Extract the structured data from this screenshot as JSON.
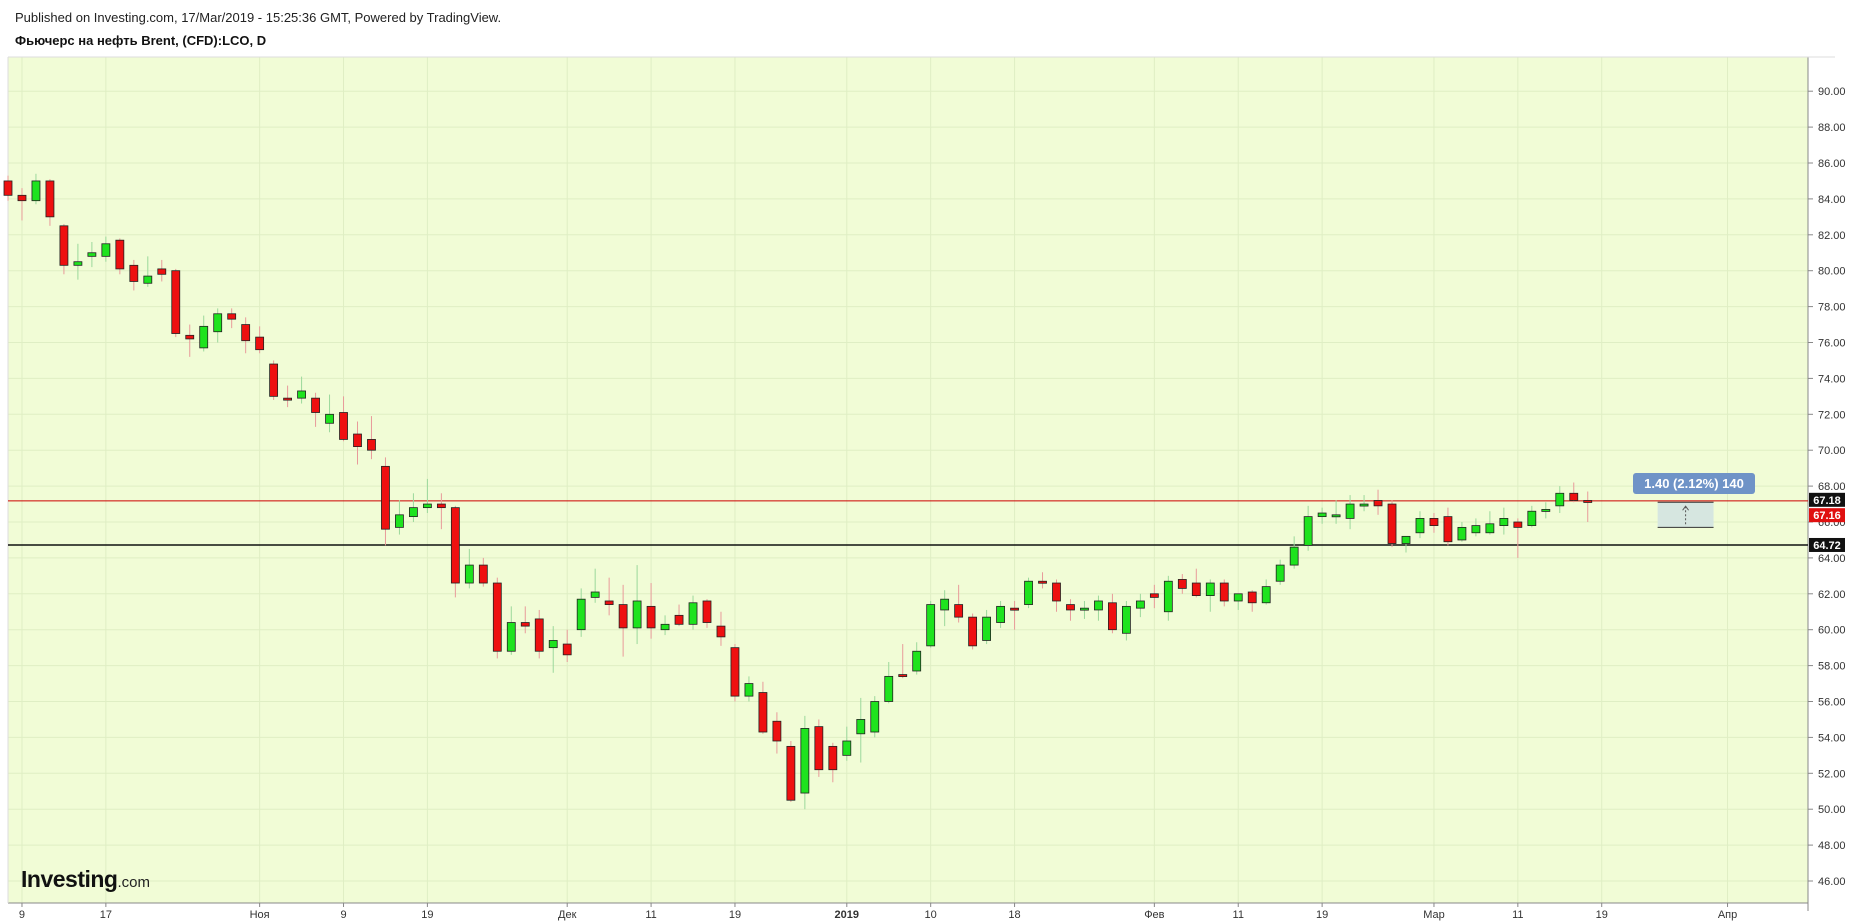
{
  "header": {
    "published": "Published on Investing.com, 17/Mar/2019 - 15:25:36 GMT, Powered by TradingView.",
    "instrument": "Фьючерс на нефть Brent, (CFD):LCO, D"
  },
  "logo": {
    "bold": "Investing",
    "suffix": ".com"
  },
  "measure_tool": {
    "label": "1.40 (2.12%) 140"
  },
  "colors": {
    "background": "#f1fcd6",
    "up": "#1ee31e",
    "down": "#ee1010",
    "red_line": "#cc0000",
    "black_line": "#111111",
    "grid": "#dfeec4"
  },
  "chart_data": {
    "type": "candlestick",
    "ylim": [
      45,
      91
    ],
    "y_ticks": [
      "46.00",
      "48.00",
      "50.00",
      "52.00",
      "54.00",
      "56.00",
      "58.00",
      "60.00",
      "62.00",
      "64.00",
      "66.00",
      "68.00",
      "70.00",
      "72.00",
      "74.00",
      "76.00",
      "78.00",
      "80.00",
      "82.00",
      "84.00",
      "86.00",
      "88.00",
      "90.00"
    ],
    "x_ticks": [
      {
        "label": "9",
        "index": 1
      },
      {
        "label": "17",
        "index": 7
      },
      {
        "label": "Ноя",
        "index": 18
      },
      {
        "label": "9",
        "index": 24
      },
      {
        "label": "19",
        "index": 30
      },
      {
        "label": "Дек",
        "index": 40
      },
      {
        "label": "11",
        "index": 46
      },
      {
        "label": "19",
        "index": 52
      },
      {
        "label": "2019",
        "index": 60
      },
      {
        "label": "10",
        "index": 66
      },
      {
        "label": "18",
        "index": 72
      },
      {
        "label": "Фев",
        "index": 82
      },
      {
        "label": "11",
        "index": 88
      },
      {
        "label": "19",
        "index": 94
      },
      {
        "label": "Мар",
        "index": 102
      },
      {
        "label": "11",
        "index": 108
      },
      {
        "label": "19",
        "index": 114
      },
      {
        "label": "Апр",
        "index": 123
      }
    ],
    "price_labels": [
      {
        "value": "67.18",
        "style": "black"
      },
      {
        "value": "67.16",
        "style": "red"
      },
      {
        "value": "64.72",
        "style": "black"
      }
    ],
    "horizontal_lines": [
      {
        "value": 67.18,
        "color": "red"
      },
      {
        "value": 64.72,
        "color": "black"
      }
    ],
    "measure_range": {
      "from": 65.7,
      "to": 67.1,
      "start_index": 118,
      "end_index": 122
    },
    "candles": [
      {
        "o": 85.0,
        "h": 85.3,
        "l": 83.9,
        "c": 84.2
      },
      {
        "o": 84.2,
        "h": 84.6,
        "l": 82.8,
        "c": 83.9
      },
      {
        "o": 83.9,
        "h": 85.4,
        "l": 83.7,
        "c": 85.0
      },
      {
        "o": 85.0,
        "h": 85.1,
        "l": 82.5,
        "c": 83.0
      },
      {
        "o": 82.5,
        "h": 82.6,
        "l": 79.8,
        "c": 80.3
      },
      {
        "o": 80.3,
        "h": 81.5,
        "l": 79.5,
        "c": 80.5
      },
      {
        "o": 80.8,
        "h": 81.6,
        "l": 80.2,
        "c": 81.0
      },
      {
        "o": 80.8,
        "h": 81.9,
        "l": 80.5,
        "c": 81.5
      },
      {
        "o": 81.7,
        "h": 81.8,
        "l": 79.8,
        "c": 80.1
      },
      {
        "o": 80.3,
        "h": 80.6,
        "l": 78.9,
        "c": 79.4
      },
      {
        "o": 79.3,
        "h": 80.8,
        "l": 79.1,
        "c": 79.7
      },
      {
        "o": 80.1,
        "h": 80.6,
        "l": 79.4,
        "c": 79.8
      },
      {
        "o": 80.0,
        "h": 80.1,
        "l": 76.3,
        "c": 76.5
      },
      {
        "o": 76.4,
        "h": 77.0,
        "l": 75.2,
        "c": 76.2
      },
      {
        "o": 75.7,
        "h": 77.5,
        "l": 75.5,
        "c": 76.9
      },
      {
        "o": 76.6,
        "h": 77.9,
        "l": 76.0,
        "c": 77.6
      },
      {
        "o": 77.6,
        "h": 77.9,
        "l": 76.8,
        "c": 77.3
      },
      {
        "o": 77.0,
        "h": 77.4,
        "l": 75.4,
        "c": 76.1
      },
      {
        "o": 76.3,
        "h": 76.9,
        "l": 75.4,
        "c": 75.6
      },
      {
        "o": 74.8,
        "h": 75.0,
        "l": 72.8,
        "c": 73.0
      },
      {
        "o": 72.9,
        "h": 73.6,
        "l": 72.4,
        "c": 72.8
      },
      {
        "o": 72.9,
        "h": 74.1,
        "l": 72.6,
        "c": 73.3
      },
      {
        "o": 72.9,
        "h": 73.2,
        "l": 71.3,
        "c": 72.1
      },
      {
        "o": 71.5,
        "h": 73.1,
        "l": 71.0,
        "c": 72.0
      },
      {
        "o": 72.1,
        "h": 73.0,
        "l": 70.5,
        "c": 70.6
      },
      {
        "o": 70.9,
        "h": 71.6,
        "l": 69.2,
        "c": 70.2
      },
      {
        "o": 70.6,
        "h": 71.9,
        "l": 69.5,
        "c": 70.0
      },
      {
        "o": 69.1,
        "h": 69.6,
        "l": 64.7,
        "c": 65.6
      },
      {
        "o": 65.7,
        "h": 67.2,
        "l": 65.3,
        "c": 66.4
      },
      {
        "o": 66.3,
        "h": 67.6,
        "l": 66.0,
        "c": 66.8
      },
      {
        "o": 66.8,
        "h": 68.4,
        "l": 66.5,
        "c": 67.0
      },
      {
        "o": 67.0,
        "h": 67.6,
        "l": 65.6,
        "c": 66.8
      },
      {
        "o": 66.8,
        "h": 66.9,
        "l": 61.8,
        "c": 62.6
      },
      {
        "o": 62.6,
        "h": 64.5,
        "l": 62.3,
        "c": 63.6
      },
      {
        "o": 63.6,
        "h": 64.0,
        "l": 62.4,
        "c": 62.6
      },
      {
        "o": 62.6,
        "h": 62.9,
        "l": 58.4,
        "c": 58.8
      },
      {
        "o": 58.8,
        "h": 61.3,
        "l": 58.6,
        "c": 60.4
      },
      {
        "o": 60.4,
        "h": 61.3,
        "l": 59.8,
        "c": 60.2
      },
      {
        "o": 60.6,
        "h": 61.1,
        "l": 58.4,
        "c": 58.8
      },
      {
        "o": 59.0,
        "h": 60.2,
        "l": 57.6,
        "c": 59.4
      },
      {
        "o": 59.2,
        "h": 60.0,
        "l": 58.2,
        "c": 58.6
      },
      {
        "o": 60.0,
        "h": 62.3,
        "l": 59.6,
        "c": 61.7
      },
      {
        "o": 61.8,
        "h": 63.4,
        "l": 61.5,
        "c": 62.1
      },
      {
        "o": 61.6,
        "h": 62.9,
        "l": 60.8,
        "c": 61.4
      },
      {
        "o": 61.4,
        "h": 62.5,
        "l": 58.5,
        "c": 60.1
      },
      {
        "o": 60.1,
        "h": 63.6,
        "l": 59.2,
        "c": 61.6
      },
      {
        "o": 61.3,
        "h": 62.6,
        "l": 59.5,
        "c": 60.1
      },
      {
        "o": 60.0,
        "h": 60.8,
        "l": 59.7,
        "c": 60.3
      },
      {
        "o": 60.8,
        "h": 61.4,
        "l": 60.2,
        "c": 60.3
      },
      {
        "o": 60.3,
        "h": 61.9,
        "l": 60.0,
        "c": 61.5
      },
      {
        "o": 61.6,
        "h": 61.7,
        "l": 60.1,
        "c": 60.4
      },
      {
        "o": 60.2,
        "h": 61.0,
        "l": 59.1,
        "c": 59.6
      },
      {
        "o": 59.0,
        "h": 59.2,
        "l": 56.0,
        "c": 56.3
      },
      {
        "o": 56.3,
        "h": 57.4,
        "l": 56.0,
        "c": 57.0
      },
      {
        "o": 56.5,
        "h": 57.1,
        "l": 54.2,
        "c": 54.3
      },
      {
        "o": 54.9,
        "h": 55.4,
        "l": 53.1,
        "c": 53.8
      },
      {
        "o": 53.5,
        "h": 53.8,
        "l": 50.4,
        "c": 50.5
      },
      {
        "o": 50.9,
        "h": 55.2,
        "l": 50.0,
        "c": 54.5
      },
      {
        "o": 54.6,
        "h": 55.0,
        "l": 51.8,
        "c": 52.2
      },
      {
        "o": 53.5,
        "h": 53.7,
        "l": 51.5,
        "c": 52.2
      },
      {
        "o": 53.0,
        "h": 54.6,
        "l": 52.7,
        "c": 53.8
      },
      {
        "o": 54.2,
        "h": 56.2,
        "l": 52.6,
        "c": 55.0
      },
      {
        "o": 54.3,
        "h": 56.3,
        "l": 54.0,
        "c": 56.0
      },
      {
        "o": 56.0,
        "h": 58.2,
        "l": 55.9,
        "c": 57.4
      },
      {
        "o": 57.5,
        "h": 59.2,
        "l": 57.3,
        "c": 57.4
      },
      {
        "o": 57.7,
        "h": 59.3,
        "l": 57.5,
        "c": 58.8
      },
      {
        "o": 59.1,
        "h": 61.6,
        "l": 59.0,
        "c": 61.4
      },
      {
        "o": 61.1,
        "h": 62.2,
        "l": 60.2,
        "c": 61.7
      },
      {
        "o": 61.4,
        "h": 62.5,
        "l": 60.4,
        "c": 60.7
      },
      {
        "o": 60.7,
        "h": 60.9,
        "l": 58.9,
        "c": 59.1
      },
      {
        "o": 59.4,
        "h": 61.1,
        "l": 59.2,
        "c": 60.7
      },
      {
        "o": 60.4,
        "h": 61.6,
        "l": 60.1,
        "c": 61.3
      },
      {
        "o": 61.2,
        "h": 61.6,
        "l": 60.0,
        "c": 61.1
      },
      {
        "o": 61.4,
        "h": 62.9,
        "l": 61.2,
        "c": 62.7
      },
      {
        "o": 62.7,
        "h": 63.2,
        "l": 62.3,
        "c": 62.6
      },
      {
        "o": 62.6,
        "h": 62.8,
        "l": 61.0,
        "c": 61.6
      },
      {
        "o": 61.4,
        "h": 61.7,
        "l": 60.5,
        "c": 61.1
      },
      {
        "o": 61.1,
        "h": 61.6,
        "l": 60.6,
        "c": 61.2
      },
      {
        "o": 61.1,
        "h": 61.9,
        "l": 60.5,
        "c": 61.6
      },
      {
        "o": 61.5,
        "h": 62.0,
        "l": 59.8,
        "c": 60.0
      },
      {
        "o": 59.8,
        "h": 61.6,
        "l": 59.4,
        "c": 61.3
      },
      {
        "o": 61.2,
        "h": 62.0,
        "l": 60.7,
        "c": 61.6
      },
      {
        "o": 62.0,
        "h": 62.5,
        "l": 61.2,
        "c": 61.8
      },
      {
        "o": 61.0,
        "h": 63.0,
        "l": 60.5,
        "c": 62.7
      },
      {
        "o": 62.8,
        "h": 63.1,
        "l": 62.0,
        "c": 62.3
      },
      {
        "o": 62.6,
        "h": 63.4,
        "l": 61.8,
        "c": 61.9
      },
      {
        "o": 61.9,
        "h": 62.8,
        "l": 61.0,
        "c": 62.6
      },
      {
        "o": 62.6,
        "h": 62.8,
        "l": 61.3,
        "c": 61.6
      },
      {
        "o": 61.6,
        "h": 62.0,
        "l": 61.1,
        "c": 62.0
      },
      {
        "o": 62.1,
        "h": 62.2,
        "l": 61.0,
        "c": 61.5
      },
      {
        "o": 61.5,
        "h": 62.8,
        "l": 61.4,
        "c": 62.4
      },
      {
        "o": 62.7,
        "h": 63.9,
        "l": 62.5,
        "c": 63.6
      },
      {
        "o": 63.6,
        "h": 65.2,
        "l": 63.4,
        "c": 64.6
      },
      {
        "o": 64.7,
        "h": 66.9,
        "l": 64.4,
        "c": 66.3
      },
      {
        "o": 66.3,
        "h": 66.8,
        "l": 65.9,
        "c": 66.5
      },
      {
        "o": 66.3,
        "h": 67.2,
        "l": 65.9,
        "c": 66.4
      },
      {
        "o": 66.2,
        "h": 67.5,
        "l": 65.6,
        "c": 67.0
      },
      {
        "o": 66.9,
        "h": 67.5,
        "l": 66.6,
        "c": 67.0
      },
      {
        "o": 67.2,
        "h": 67.8,
        "l": 66.4,
        "c": 66.9
      },
      {
        "o": 67.0,
        "h": 67.2,
        "l": 64.6,
        "c": 64.8
      },
      {
        "o": 64.8,
        "h": 65.2,
        "l": 64.3,
        "c": 65.2
      },
      {
        "o": 65.4,
        "h": 66.6,
        "l": 65.1,
        "c": 66.2
      },
      {
        "o": 66.2,
        "h": 66.5,
        "l": 65.4,
        "c": 65.8
      },
      {
        "o": 66.3,
        "h": 66.8,
        "l": 64.7,
        "c": 64.9
      },
      {
        "o": 65.0,
        "h": 66.0,
        "l": 64.9,
        "c": 65.7
      },
      {
        "o": 65.4,
        "h": 66.2,
        "l": 65.2,
        "c": 65.8
      },
      {
        "o": 65.4,
        "h": 66.6,
        "l": 65.3,
        "c": 65.9
      },
      {
        "o": 65.8,
        "h": 66.8,
        "l": 65.3,
        "c": 66.2
      },
      {
        "o": 66.0,
        "h": 66.2,
        "l": 64.0,
        "c": 65.7
      },
      {
        "o": 65.8,
        "h": 66.9,
        "l": 65.7,
        "c": 66.6
      },
      {
        "o": 66.6,
        "h": 67.1,
        "l": 66.2,
        "c": 66.7
      },
      {
        "o": 66.9,
        "h": 68.0,
        "l": 66.5,
        "c": 67.6
      },
      {
        "o": 67.6,
        "h": 68.2,
        "l": 67.1,
        "c": 67.2
      },
      {
        "o": 67.2,
        "h": 67.7,
        "l": 66.0,
        "c": 67.16
      }
    ]
  }
}
